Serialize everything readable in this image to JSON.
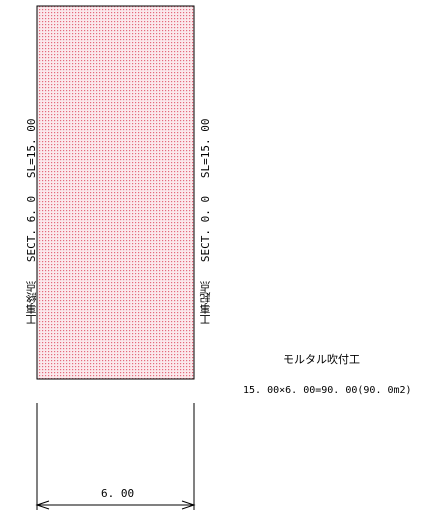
{
  "colors": {
    "hatch_fill": "#fbe9ec",
    "hatch_dot": "#e46a7c",
    "line": "#000000"
  },
  "left_label": {
    "end_point": "工事終点",
    "section": "SECT. 6. 0",
    "slope_length": "SL=15. 00"
  },
  "right_label": {
    "start_point": "工事起点",
    "section": "SECT. 0. 0",
    "slope_length": "SL=15. 00"
  },
  "work_item": {
    "title": "モルタル吹付工",
    "formula": "15. 00×6. 00=90. 00(90. 0m2)"
  },
  "dimension": {
    "width_label": "6. 00"
  }
}
